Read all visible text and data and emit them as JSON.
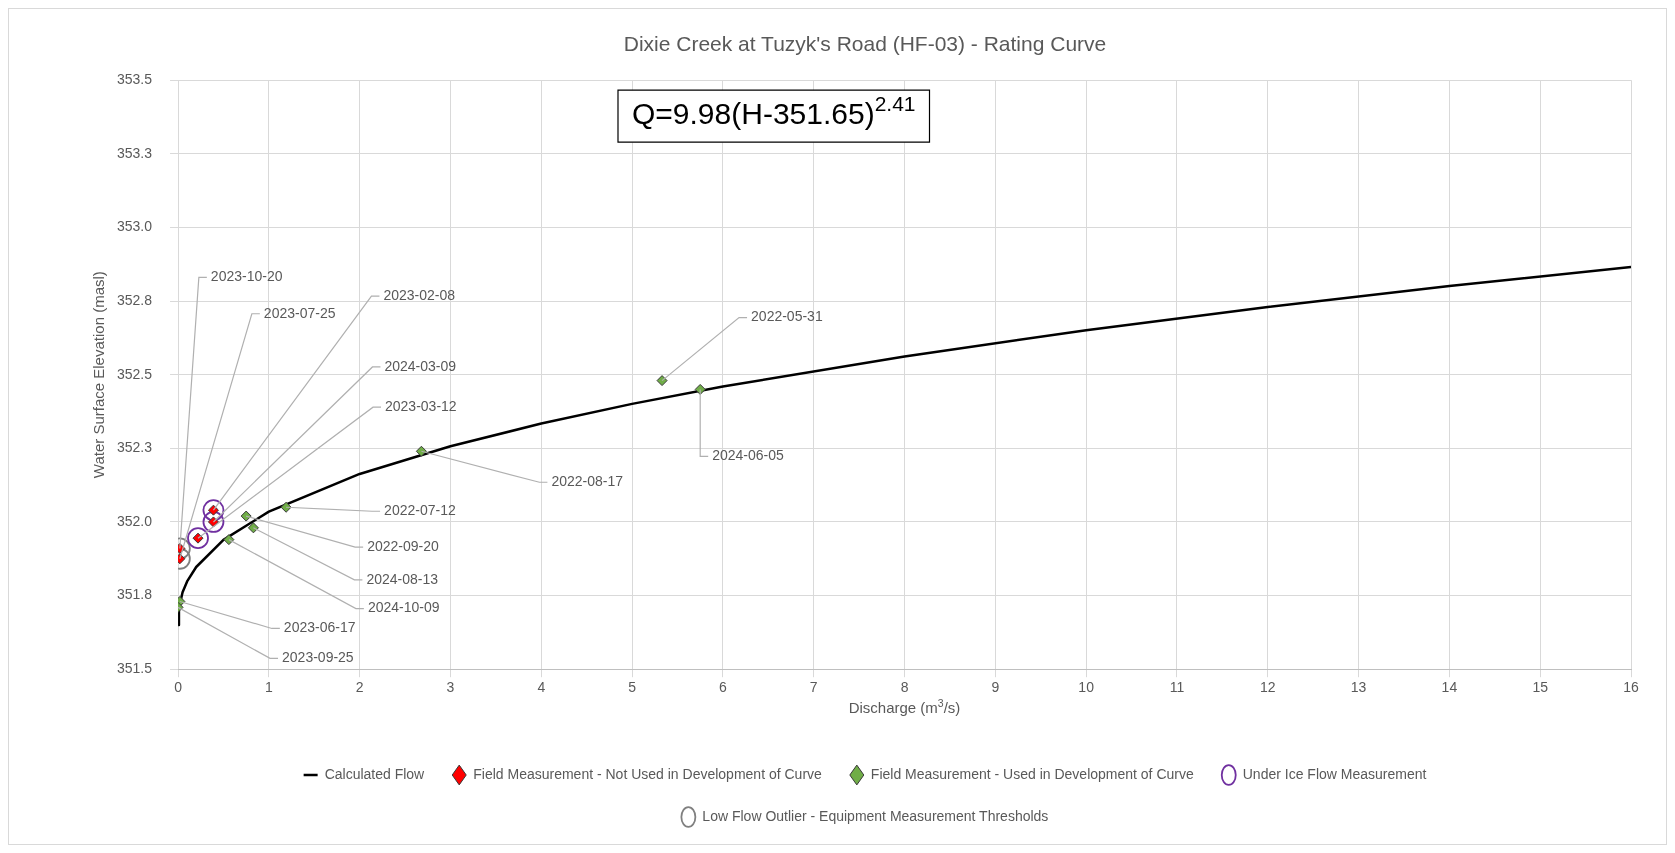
{
  "chart_data": {
    "type": "scatter",
    "title": "Dixie Creek at Tuzyk's Road (HF-03) - Rating Curve",
    "xlabel": "Discharge (m$^{3}$/s)",
    "ylabel": "Water Surface Elevation (masl)",
    "xlim": [
      0,
      16
    ],
    "xticks": [
      0,
      1,
      2,
      3,
      4,
      5,
      6,
      7,
      8,
      9,
      10,
      11,
      12,
      13,
      14,
      15,
      16
    ],
    "ylim": [
      351.5,
      353.5
    ],
    "yticks": [
      351.5,
      {
        "value": 351.75,
        "label": "351.8"
      },
      {
        "value": 352,
        "label": "352.0"
      },
      {
        "value": 352.25,
        "label": "352.3"
      },
      352.5,
      {
        "value": 352.75,
        "label": "352.8"
      },
      {
        "value": 353,
        "label": "353.0"
      },
      {
        "value": 353.25,
        "label": "353.3"
      },
      353.5
    ],
    "grid": true,
    "legend": "bottom",
    "series": [
      {
        "name": "Calculated Flow",
        "type": "line",
        "color": "#000000",
        "marker": "none",
        "x": [
          0,
          0.01,
          0.05,
          0.1,
          0.2,
          0.5,
          1,
          2,
          3,
          4,
          5,
          6,
          8,
          10,
          12,
          14,
          16
        ],
        "values": [
          351.65,
          351.707,
          351.761,
          351.798,
          351.847,
          351.939,
          352.035,
          352.163,
          352.257,
          352.334,
          352.401,
          352.46,
          352.562,
          352.651,
          352.73,
          352.801,
          352.866
        ]
      },
      {
        "name": "Field Measurement - Not Used in Development of Curve",
        "type": "scatter",
        "color": "#ff0000",
        "marker": "diamond",
        "x": [
          0.02,
          0.02,
          0.39,
          0.39,
          0.22
        ],
        "values": [
          351.91,
          351.875,
          352.04,
          352.0,
          351.945
        ]
      },
      {
        "name": "Field Measurement - Used in Development of Curve",
        "type": "scatter",
        "color": "#70ad47",
        "marker": "diamond",
        "x": [
          5.33,
          5.75,
          2.68,
          1.19,
          0.75,
          0.83,
          0.56,
          0.02,
          0.0
        ],
        "values": [
          352.48,
          352.45,
          352.24,
          352.05,
          352.02,
          351.98,
          351.94,
          351.73,
          351.71
        ]
      },
      {
        "name": "Under Ice Flow Measurement",
        "type": "scatter",
        "color": "#7030a0",
        "marker": "circle",
        "x": [
          0.39,
          0.39,
          0.22
        ],
        "values": [
          352.04,
          352.0,
          351.945
        ]
      },
      {
        "name": "Low Flow Outlier - Equipment Measurement Thresholds",
        "type": "scatter",
        "color": "#808080",
        "marker": "circle",
        "x": [
          0.02,
          0.02
        ],
        "values": [
          351.91,
          351.875
        ]
      }
    ],
    "annotations": [
      "Q=9.98(H-351.65)$^{2.41}$",
      {
        "text": "2023-10-20",
        "x": 0.02,
        "y": 351.91
      },
      {
        "text": "2023-07-25",
        "x": 0.02,
        "y": 351.875
      },
      {
        "text": "2023-02-08",
        "x": 0.39,
        "y": 352.04
      },
      {
        "text": "2024-03-09",
        "x": 0.39,
        "y": 352.0
      },
      {
        "text": "2023-03-12",
        "x": 0.22,
        "y": 351.945
      },
      {
        "text": "2022-05-31",
        "x": 5.33,
        "y": 352.48
      },
      {
        "text": "2024-06-05",
        "x": 5.75,
        "y": 352.45
      },
      {
        "text": "2022-08-17",
        "x": 2.68,
        "y": 352.24
      },
      {
        "text": "2022-07-12",
        "x": 1.19,
        "y": 352.05
      },
      {
        "text": "2022-09-20",
        "x": 0.75,
        "y": 352.02
      },
      {
        "text": "2024-08-13",
        "x": 0.83,
        "y": 351.98
      },
      {
        "text": "2024-10-09",
        "x": 0.56,
        "y": 351.94
      },
      {
        "text": "2023-06-17",
        "x": 0.02,
        "y": 351.73
      },
      {
        "text": "2023-09-25",
        "x": 0.0,
        "y": 351.71
      }
    ]
  }
}
